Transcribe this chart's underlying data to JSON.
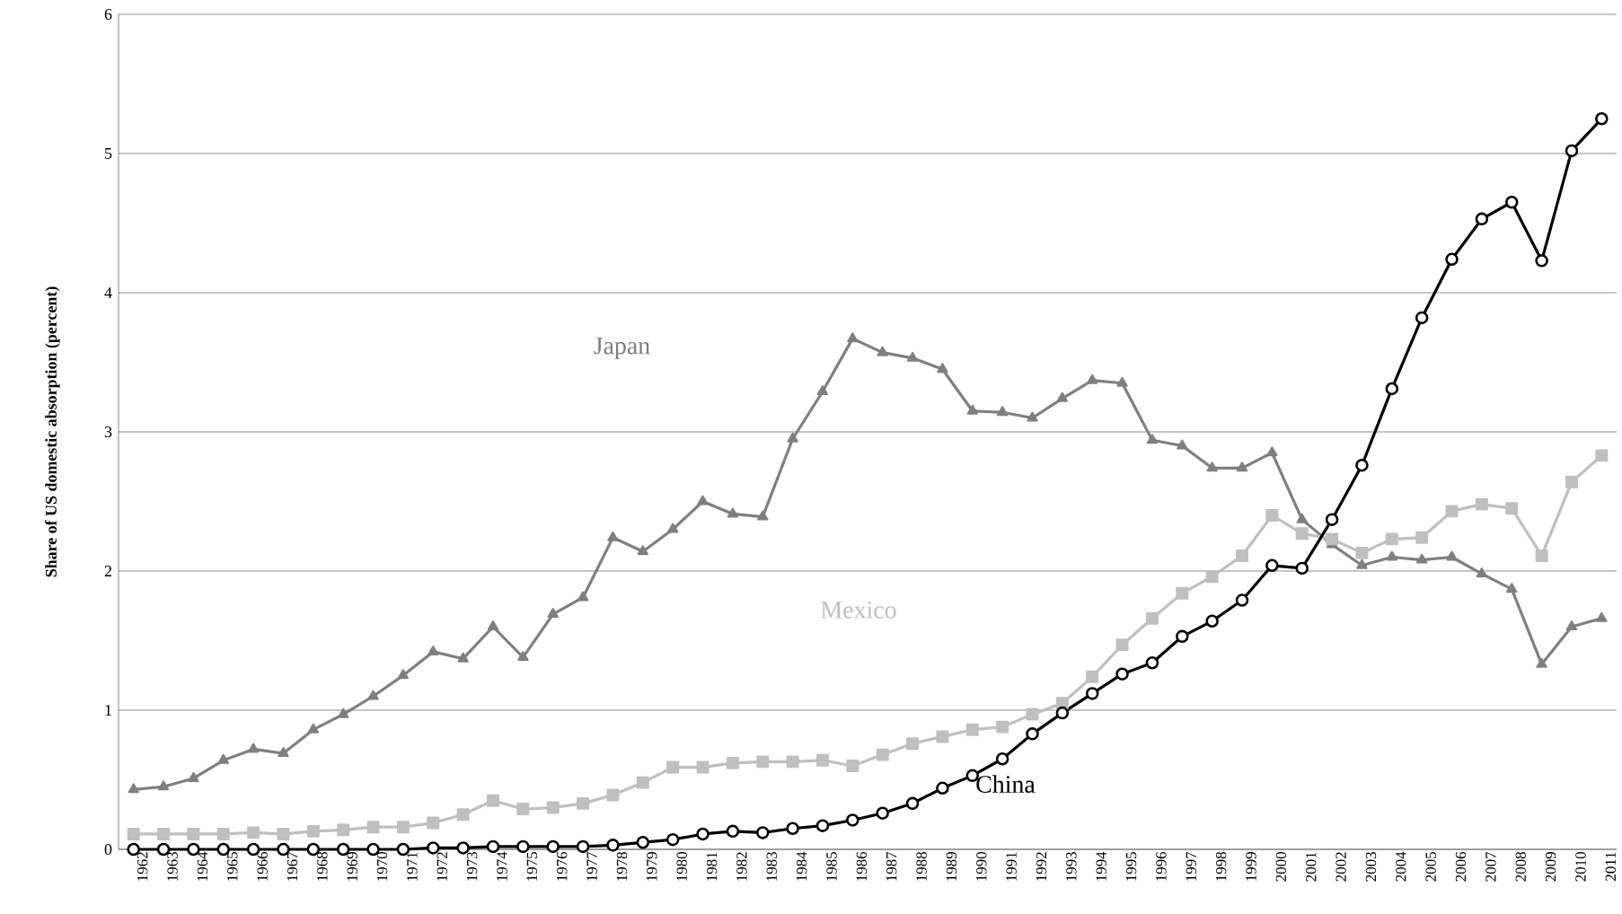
{
  "chart_data": {
    "type": "line",
    "ylabel": "Share of US domestic absorption (percent)",
    "categories": [
      "1962",
      "1963",
      "1964",
      "1965",
      "1966",
      "1967",
      "1968",
      "1969",
      "1970",
      "1971",
      "1972",
      "1973",
      "1974",
      "1975",
      "1976",
      "1977",
      "1978",
      "1979",
      "1980",
      "1981",
      "1982",
      "1983",
      "1984",
      "1985",
      "1986",
      "1987",
      "1988",
      "1989",
      "1990",
      "1991",
      "1992",
      "1993",
      "1994",
      "1995",
      "1996",
      "1997",
      "1998",
      "1999",
      "2000",
      "2001",
      "2002",
      "2003",
      "2004",
      "2005",
      "2006",
      "2007",
      "2008",
      "2009",
      "2010",
      "2011"
    ],
    "ylim": [
      0,
      6
    ],
    "yticks": [
      0,
      1,
      2,
      3,
      4,
      5,
      6
    ],
    "grid": "y",
    "legend": false,
    "line_style": "solid",
    "series": [
      {
        "name": "Japan",
        "color": "#7f7f7f",
        "marker": "triangle",
        "values": [
          0.43,
          0.45,
          0.51,
          0.64,
          0.72,
          0.69,
          0.86,
          0.97,
          1.1,
          1.25,
          1.42,
          1.37,
          1.6,
          1.38,
          1.69,
          1.81,
          2.24,
          2.14,
          2.3,
          2.5,
          2.41,
          2.39,
          2.95,
          3.29,
          3.67,
          3.57,
          3.53,
          3.45,
          3.15,
          3.14,
          3.1,
          3.24,
          3.37,
          3.35,
          2.94,
          2.9,
          2.74,
          2.74,
          2.85,
          2.37,
          2.19,
          2.04,
          2.1,
          2.08,
          2.1,
          1.98,
          1.87,
          1.33,
          1.6,
          1.66
        ]
      },
      {
        "name": "Mexico",
        "color": "#bfbfbf",
        "marker": "square",
        "values": [
          0.11,
          0.11,
          0.11,
          0.11,
          0.12,
          0.11,
          0.13,
          0.14,
          0.16,
          0.16,
          0.19,
          0.25,
          0.35,
          0.29,
          0.3,
          0.33,
          0.39,
          0.48,
          0.59,
          0.59,
          0.62,
          0.63,
          0.63,
          0.64,
          0.6,
          0.68,
          0.76,
          0.81,
          0.86,
          0.88,
          0.97,
          1.05,
          1.24,
          1.47,
          1.66,
          1.84,
          1.96,
          2.11,
          2.4,
          2.27,
          2.23,
          2.13,
          2.23,
          2.24,
          2.43,
          2.48,
          2.45,
          2.11,
          2.64,
          2.83
        ]
      },
      {
        "name": "China",
        "color": "#000000",
        "marker": "circle",
        "values": [
          0.0,
          0.0,
          0.0,
          0.0,
          0.0,
          0.0,
          0.0,
          0.0,
          0.0,
          0.0,
          0.01,
          0.01,
          0.02,
          0.02,
          0.02,
          0.02,
          0.03,
          0.05,
          0.07,
          0.11,
          0.13,
          0.12,
          0.15,
          0.17,
          0.21,
          0.26,
          0.33,
          0.44,
          0.53,
          0.65,
          0.83,
          0.98,
          1.12,
          1.26,
          1.34,
          1.53,
          1.64,
          1.79,
          2.04,
          2.02,
          2.37,
          2.76,
          3.31,
          3.82,
          4.24,
          4.53,
          4.65,
          4.23,
          5.02,
          5.25
        ]
      }
    ]
  }
}
